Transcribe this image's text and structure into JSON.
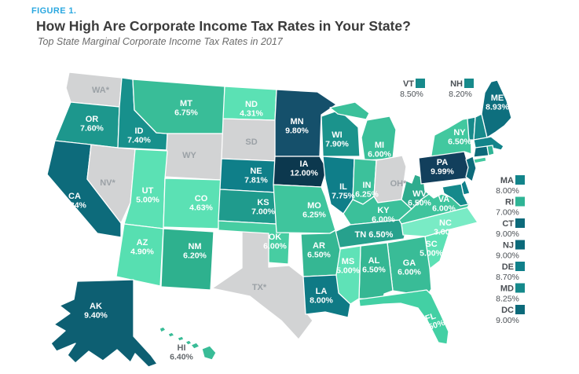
{
  "header": {
    "figure_label": "FIGURE 1.",
    "title": "How High Are Corporate Income Tax Rates in Your State?",
    "subtitle": "Top State Marginal Corporate Income Tax Rates in 2017",
    "accent_color": "#2BA8E0"
  },
  "chart_data": {
    "type": "heatmap",
    "subtype": "us-choropleth-map",
    "title": "How High Are Corporate Income Tax Rates in Your State?",
    "subtitle": "Top State Marginal Corporate Income Tax Rates in 2017",
    "unit": "percent",
    "values": {
      "AL": 6.5,
      "AK": 9.4,
      "AZ": 4.9,
      "AR": 6.5,
      "CA": 8.84,
      "CO": 4.63,
      "CT": 9.0,
      "DC": 9.0,
      "DE": 8.7,
      "FL": 5.5,
      "GA": 6.0,
      "HI": 6.4,
      "ID": 7.4,
      "IL": 7.75,
      "IN": 6.25,
      "IA": 12.0,
      "KS": 7.0,
      "KY": 6.0,
      "LA": 8.0,
      "ME": 8.93,
      "MD": 8.25,
      "MA": 8.0,
      "MI": 6.0,
      "MN": 9.8,
      "MS": 5.0,
      "MO": 6.25,
      "MT": 6.75,
      "NE": 7.81,
      "NH": 8.2,
      "NJ": 9.0,
      "NM": 6.2,
      "NY": 6.5,
      "NC": 3.0,
      "ND": 4.31,
      "OK": 6.0,
      "OR": 7.6,
      "PA": 9.99,
      "RI": 7.0,
      "SC": 5.0,
      "TN": 6.5,
      "UT": 5.0,
      "VT": 8.5,
      "VA": 6.0,
      "WV": 6.5,
      "WI": 7.9
    },
    "states_marked_with_asterisk": [
      "WA",
      "NV",
      "TX",
      "OH"
    ],
    "states_with_no_rate_shown": [
      "WY",
      "SD"
    ],
    "no_rate_fill": "#D2D3D4",
    "legend_position": "top-right-and-right-column"
  },
  "map": {
    "states": [
      {
        "abbr": "WA",
        "label": "WA*",
        "rate": null,
        "fill": "#D2D3D4"
      },
      {
        "abbr": "OR",
        "label": "OR",
        "rate": "7.60%",
        "fill": "#1D978D"
      },
      {
        "abbr": "CA",
        "label": "CA",
        "rate": "8.84%",
        "fill": "#0D6B7B"
      },
      {
        "abbr": "NV",
        "label": "NV*",
        "rate": null,
        "fill": "#D2D3D4"
      },
      {
        "abbr": "ID",
        "label": "ID",
        "rate": "7.40%",
        "fill": "#17908C"
      },
      {
        "abbr": "MT",
        "label": "MT",
        "rate": "6.75%",
        "fill": "#39BD98"
      },
      {
        "abbr": "WY",
        "label": "WY",
        "rate": null,
        "fill": "#D2D3D4"
      },
      {
        "abbr": "UT",
        "label": "UT",
        "rate": "5.00%",
        "fill": "#5BE1B4"
      },
      {
        "abbr": "CO",
        "label": "CO",
        "rate": "4.63%",
        "fill": "#5BE1B4"
      },
      {
        "abbr": "AZ",
        "label": "AZ",
        "rate": "4.90%",
        "fill": "#57DFB1"
      },
      {
        "abbr": "NM",
        "label": "NM",
        "rate": "6.20%",
        "fill": "#2EB18E"
      },
      {
        "abbr": "ND",
        "label": "ND",
        "rate": "4.31%",
        "fill": "#5BE1B4"
      },
      {
        "abbr": "SD",
        "label": "SD",
        "rate": null,
        "fill": "#D2D3D4"
      },
      {
        "abbr": "NE",
        "label": "NE",
        "rate": "7.81%",
        "fill": "#0F7F89"
      },
      {
        "abbr": "KS",
        "label": "KS",
        "rate": "7.00%",
        "fill": "#1F9B8D"
      },
      {
        "abbr": "OK",
        "label": "OK",
        "rate": "6.00%",
        "fill": "#47CDA2"
      },
      {
        "abbr": "TX",
        "label": "TX*",
        "rate": null,
        "fill": "#D2D3D4"
      },
      {
        "abbr": "MN",
        "label": "MN",
        "rate": "9.80%",
        "fill": "#15506B"
      },
      {
        "abbr": "IA",
        "label": "IA",
        "rate": "12.00%",
        "fill": "#0C384E"
      },
      {
        "abbr": "MO",
        "label": "MO",
        "rate": "6.25%",
        "fill": "#3FC59D"
      },
      {
        "abbr": "WI",
        "label": "WI",
        "rate": "7.90%",
        "fill": "#1B938C"
      },
      {
        "abbr": "MI",
        "label": "MI",
        "rate": "6.00%",
        "fill": "#3BC09A"
      },
      {
        "abbr": "IL",
        "label": "IL",
        "rate": "7.75%",
        "fill": "#0F7E89"
      },
      {
        "abbr": "IN",
        "label": "IN",
        "rate": "6.25%",
        "fill": "#3CC19B"
      },
      {
        "abbr": "OH",
        "label": "OH*",
        "rate": null,
        "fill": "#D2D3D4"
      },
      {
        "abbr": "KY",
        "label": "KY",
        "rate": "6.00%",
        "fill": "#3BC09A"
      },
      {
        "abbr": "TN",
        "label": "TN",
        "rate": "6.50%",
        "fill": "#27A18D"
      },
      {
        "abbr": "WV",
        "label": "WV",
        "rate": "6.50%",
        "fill": "#2FAC8E"
      },
      {
        "abbr": "VA",
        "label": "VA",
        "rate": "6.00%",
        "fill": "#3FC49D"
      },
      {
        "abbr": "NC",
        "label": "NC",
        "rate": "3.00%",
        "fill": "#79EBC5"
      },
      {
        "abbr": "SC",
        "label": "SC",
        "rate": "5.00%",
        "fill": "#5DE1B5"
      },
      {
        "abbr": "GA",
        "label": "GA",
        "rate": "6.00%",
        "fill": "#39BC97"
      },
      {
        "abbr": "AL",
        "label": "AL",
        "rate": "6.50%",
        "fill": "#35B793"
      },
      {
        "abbr": "MS",
        "label": "MS",
        "rate": "5.00%",
        "fill": "#5FE2B7"
      },
      {
        "abbr": "AR",
        "label": "AR",
        "rate": "6.50%",
        "fill": "#35B793"
      },
      {
        "abbr": "LA",
        "label": "LA",
        "rate": "8.00%",
        "fill": "#0F7A85"
      },
      {
        "abbr": "FL",
        "label": "FL",
        "rate": "5.50%",
        "fill": "#43D0A4"
      },
      {
        "abbr": "NY",
        "label": "NY",
        "rate": "6.50%",
        "fill": "#42C89F"
      },
      {
        "abbr": "PA",
        "label": "PA",
        "rate": "9.99%",
        "fill": "#123F5C"
      },
      {
        "abbr": "NJ",
        "label": "NJ",
        "rate": "9.00%",
        "fill": "#0C6A7A"
      },
      {
        "abbr": "DE",
        "label": "DE",
        "rate": "8.70%",
        "fill": "#10808A"
      },
      {
        "abbr": "MD",
        "label": "MD",
        "rate": "8.25%",
        "fill": "#15898B"
      },
      {
        "abbr": "VT",
        "label": "VT",
        "rate": "8.50%",
        "fill": "#178A8B"
      },
      {
        "abbr": "NH",
        "label": "NH",
        "rate": "8.20%",
        "fill": "#178A8B"
      },
      {
        "abbr": "MA",
        "label": "MA",
        "rate": "8.00%",
        "fill": "#12848A"
      },
      {
        "abbr": "CT",
        "label": "CT",
        "rate": "9.00%",
        "fill": "#0C6A7A"
      },
      {
        "abbr": "RI",
        "label": "RI",
        "rate": "7.00%",
        "fill": "#2FB495"
      },
      {
        "abbr": "ME",
        "label": "ME",
        "rate": "8.93%",
        "fill": "#0E6F7E"
      },
      {
        "abbr": "AK",
        "label": "AK",
        "rate": "9.40%",
        "fill": "#0D5F72"
      },
      {
        "abbr": "HI",
        "label": "HI",
        "rate": "6.40%",
        "fill": "#39BC97"
      }
    ]
  },
  "legend": {
    "top": [
      {
        "abbr": "VT",
        "rate": "8.50%",
        "fill": "#178A8B"
      },
      {
        "abbr": "NH",
        "rate": "8.20%",
        "fill": "#178A8B"
      }
    ],
    "right": [
      {
        "abbr": "MA",
        "rate": "8.00%",
        "fill": "#12848A"
      },
      {
        "abbr": "RI",
        "rate": "7.00%",
        "fill": "#2FB495"
      },
      {
        "abbr": "CT",
        "rate": "9.00%",
        "fill": "#0C6A7A"
      },
      {
        "abbr": "NJ",
        "rate": "9.00%",
        "fill": "#0C6A7A"
      },
      {
        "abbr": "DE",
        "rate": "8.70%",
        "fill": "#10808A"
      },
      {
        "abbr": "MD",
        "rate": "8.25%",
        "fill": "#15898B"
      },
      {
        "abbr": "DC",
        "rate": "9.00%",
        "fill": "#0C6A7A"
      }
    ]
  }
}
